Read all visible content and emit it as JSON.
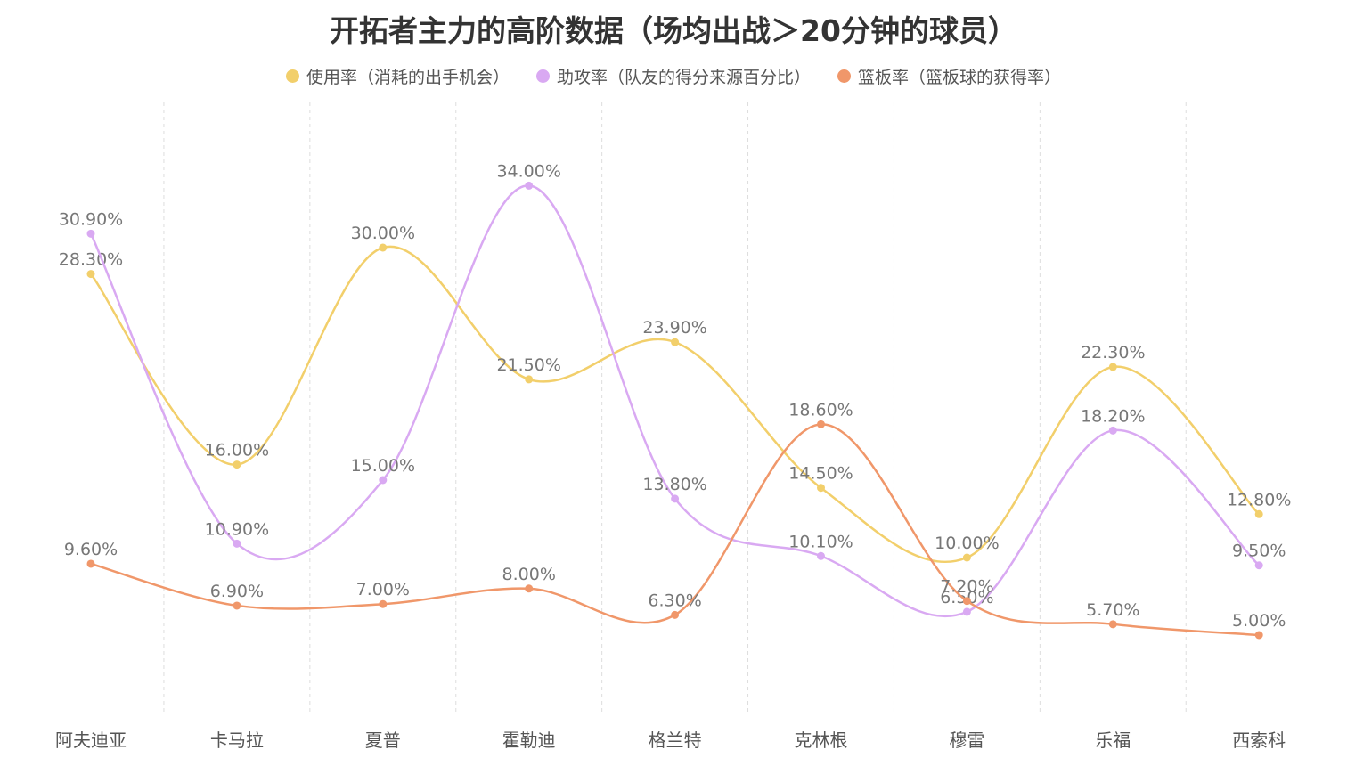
{
  "chart_data": {
    "type": "line",
    "title": "开拓者主力的高阶数据（场均出战＞20分钟的球员）",
    "categories": [
      "阿夫迪亚",
      "卡马拉",
      "夏普",
      "霍勒迪",
      "格兰特",
      "克林根",
      "穆雷",
      "乐福",
      "西索科"
    ],
    "series": [
      {
        "name": "使用率（消耗的出手机会）",
        "color": "#f2cf6b",
        "values": [
          28.3,
          16.0,
          30.0,
          21.5,
          23.9,
          14.5,
          10.0,
          22.3,
          12.8
        ],
        "labels": [
          "28.30%",
          "16.00%",
          "30.00%",
          "21.50%",
          "23.90%",
          "14.50%",
          "10.00%",
          "22.30%",
          "12.80%"
        ]
      },
      {
        "name": "助攻率（队友的得分来源百分比）",
        "color": "#d9a9f2",
        "values": [
          30.9,
          10.9,
          15.0,
          34.0,
          13.8,
          10.1,
          6.5,
          18.2,
          9.5
        ],
        "labels": [
          "30.90%",
          "10.90%",
          "15.00%",
          "34.00%",
          "13.80%",
          "10.10%",
          "6.50%",
          "18.20%",
          "9.50%"
        ]
      },
      {
        "name": "篮板率（篮板球的获得率）",
        "color": "#f0976a",
        "values": [
          9.6,
          6.9,
          7.0,
          8.0,
          6.3,
          18.6,
          7.2,
          5.7,
          5.0
        ],
        "labels": [
          "9.60%",
          "6.90%",
          "7.00%",
          "8.00%",
          "6.30%",
          "18.60%",
          "7.20%",
          "5.70%",
          "5.00%"
        ]
      }
    ],
    "ylim": [
      0,
      35
    ],
    "grid": "vertical-dashed",
    "legend_position": "top-center",
    "smooth": true
  }
}
